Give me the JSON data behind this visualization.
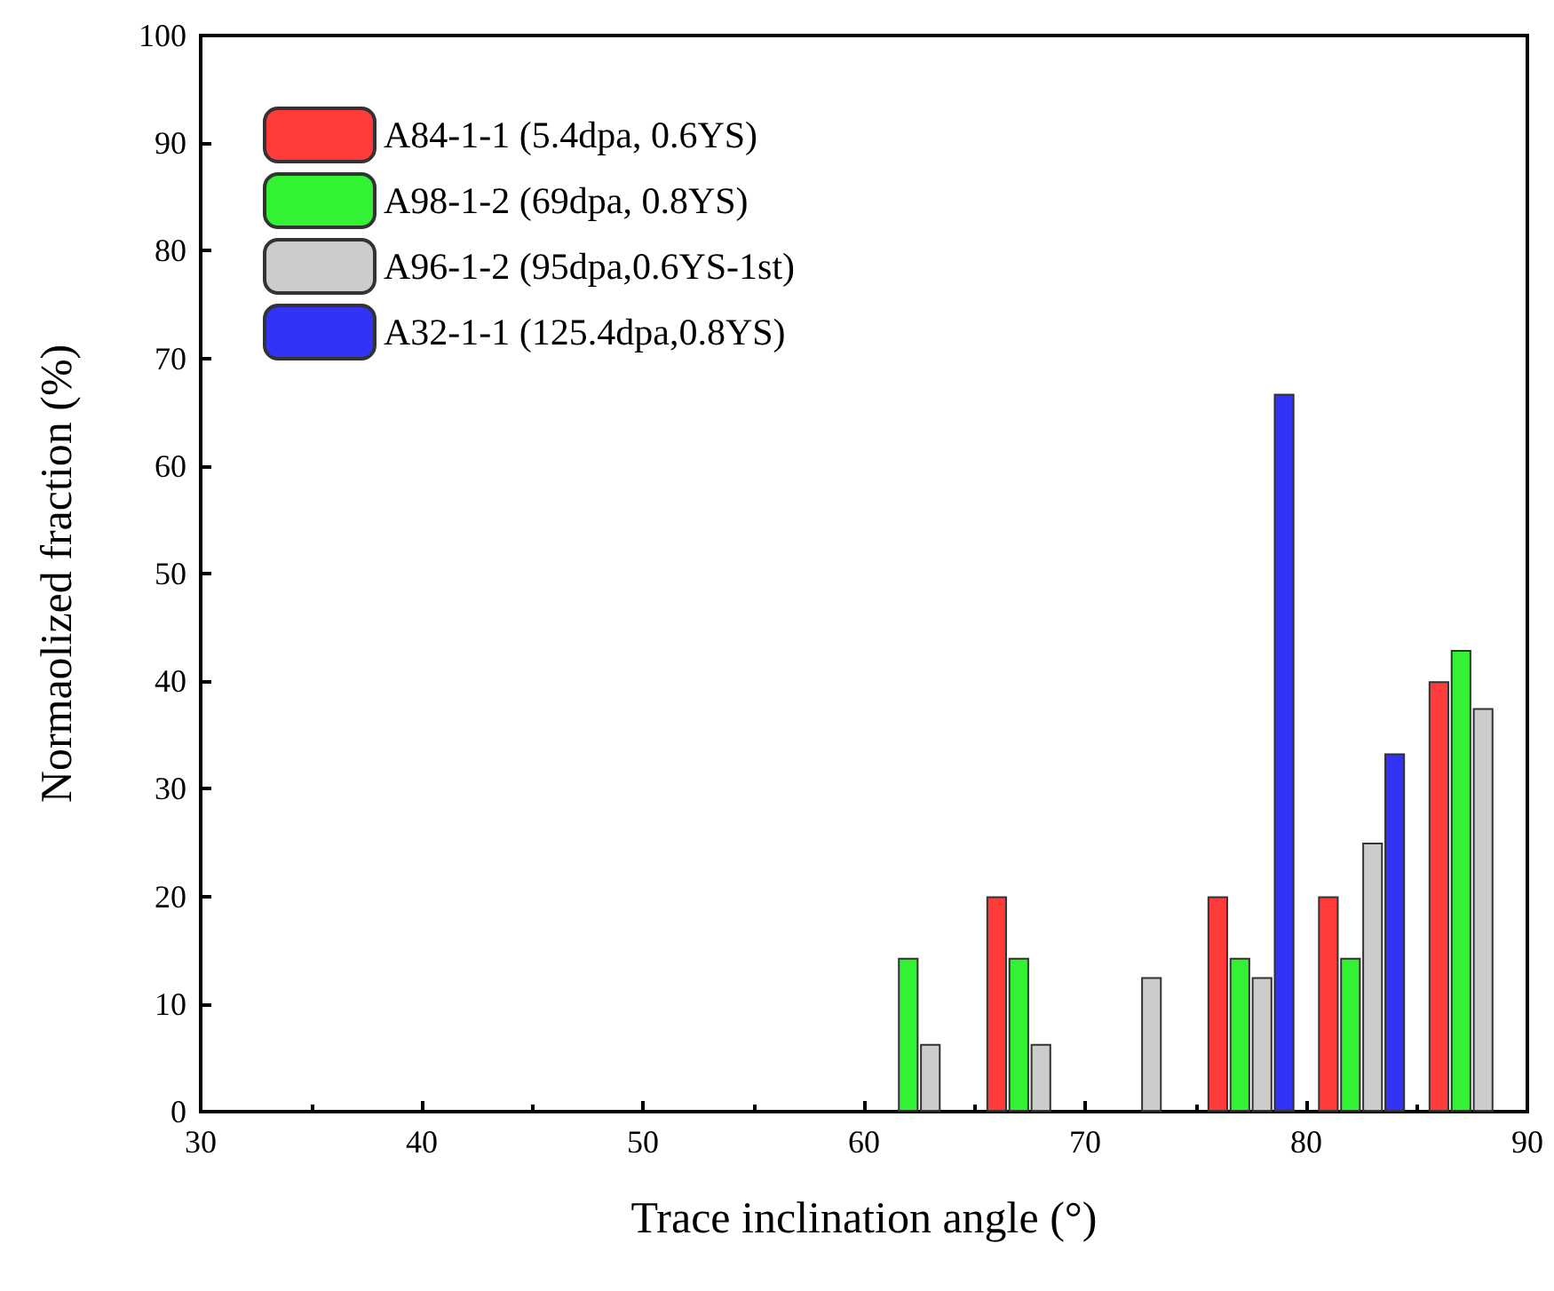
{
  "chart_data": {
    "type": "bar",
    "xlabel": "Trace inclination angle (°)",
    "ylabel": "Normaolized fraction (%)",
    "xlim": [
      30,
      90
    ],
    "xticks": [
      30,
      40,
      50,
      60,
      70,
      80,
      90
    ],
    "ylim": [
      0,
      100
    ],
    "yticks": [
      0,
      10,
      20,
      30,
      40,
      50,
      60,
      70,
      80,
      90,
      100
    ],
    "grid": false,
    "legend": "top left",
    "series": [
      {
        "name": "A84-1-1 (5.4dpa, 0.6YS)",
        "color": "#ff3b3b",
        "x": [
          66,
          76,
          81,
          86
        ],
        "values": [
          20,
          20,
          20,
          40
        ]
      },
      {
        "name": "A98-1-2 (69dpa, 0.8YS)",
        "color": "#33f233",
        "x": [
          62,
          67,
          77,
          82,
          87
        ],
        "values": [
          14.3,
          14.3,
          14.3,
          14.3,
          42.9
        ]
      },
      {
        "name": "A96-1-2 (95dpa,0.6YS-1st)",
        "color": "#cccccc",
        "x": [
          63,
          68,
          73,
          78,
          83,
          88
        ],
        "values": [
          6.3,
          6.3,
          12.5,
          12.5,
          25,
          37.5
        ]
      },
      {
        "name": "A32-1-1 (125.4dpa,0.8YS)",
        "color": "#3333f5",
        "x": [
          79,
          84
        ],
        "values": [
          66.7,
          33.3
        ]
      }
    ]
  }
}
